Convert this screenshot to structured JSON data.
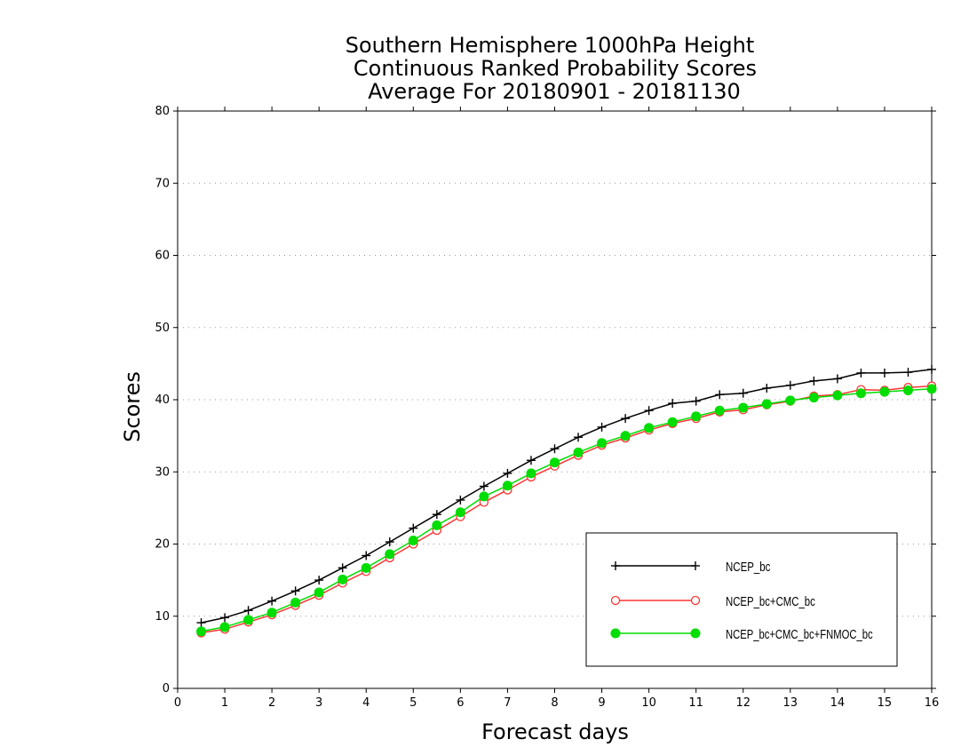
{
  "chart_data": {
    "type": "line",
    "title": [
      "Southern Hemisphere 1000hPa Height",
      "Continuous Ranked Probability Scores",
      "Average For 20180901 - 20181130"
    ],
    "xlabel": "Forecast days",
    "ylabel": "Scores",
    "xlim": [
      0,
      16
    ],
    "ylim": [
      0,
      80
    ],
    "xticks": [
      "0",
      "1",
      "2",
      "3",
      "4",
      "5",
      "6",
      "7",
      "8",
      "9",
      "10",
      "11",
      "12",
      "13",
      "14",
      "15",
      "16"
    ],
    "yticks": [
      "0",
      "10",
      "20",
      "30",
      "40",
      "50",
      "60",
      "70",
      "80"
    ],
    "grid": "horizontal-dotted",
    "legend_position": "bottom-right",
    "x": [
      0.5,
      1,
      1.5,
      2,
      2.5,
      3,
      3.5,
      4,
      4.5,
      5,
      5.5,
      6,
      6.5,
      7,
      7.5,
      8,
      8.5,
      9,
      9.5,
      10,
      10.5,
      11,
      11.5,
      12,
      12.5,
      13,
      13.5,
      14,
      14.5,
      15,
      15.5,
      16
    ],
    "series": [
      {
        "name": "NCEP_bc",
        "color": "#000000",
        "marker": "plus",
        "values": [
          9.1,
          9.8,
          10.8,
          12.1,
          13.5,
          15.0,
          16.7,
          18.4,
          20.3,
          22.2,
          24.1,
          26.1,
          28.0,
          29.8,
          31.6,
          33.2,
          34.8,
          36.2,
          37.4,
          38.5,
          39.5,
          39.8,
          40.7,
          40.9,
          41.6,
          42.0,
          42.6,
          42.9,
          43.7,
          43.7,
          43.8,
          44.2
        ]
      },
      {
        "name": "NCEP_bc+CMC_bc",
        "color": "#ff3333",
        "marker": "open-circle",
        "values": [
          7.7,
          8.2,
          9.2,
          10.2,
          11.5,
          12.9,
          14.6,
          16.2,
          18.1,
          20.0,
          21.9,
          23.8,
          25.8,
          27.5,
          29.3,
          30.8,
          32.3,
          33.7,
          34.7,
          35.8,
          36.7,
          37.4,
          38.3,
          38.6,
          39.3,
          39.8,
          40.5,
          40.7,
          41.4,
          41.3,
          41.7,
          41.9
        ]
      },
      {
        "name": "NCEP_bc+CMC_bc+FNMOC_bc",
        "color": "#00dd00",
        "marker": "filled-circle",
        "values": [
          7.9,
          8.5,
          9.5,
          10.5,
          11.9,
          13.3,
          15.1,
          16.7,
          18.6,
          20.5,
          22.6,
          24.4,
          26.6,
          28.1,
          29.8,
          31.3,
          32.7,
          34.0,
          35.0,
          36.1,
          36.9,
          37.7,
          38.5,
          38.9,
          39.4,
          39.9,
          40.3,
          40.6,
          40.9,
          41.1,
          41.3,
          41.5
        ]
      }
    ]
  }
}
